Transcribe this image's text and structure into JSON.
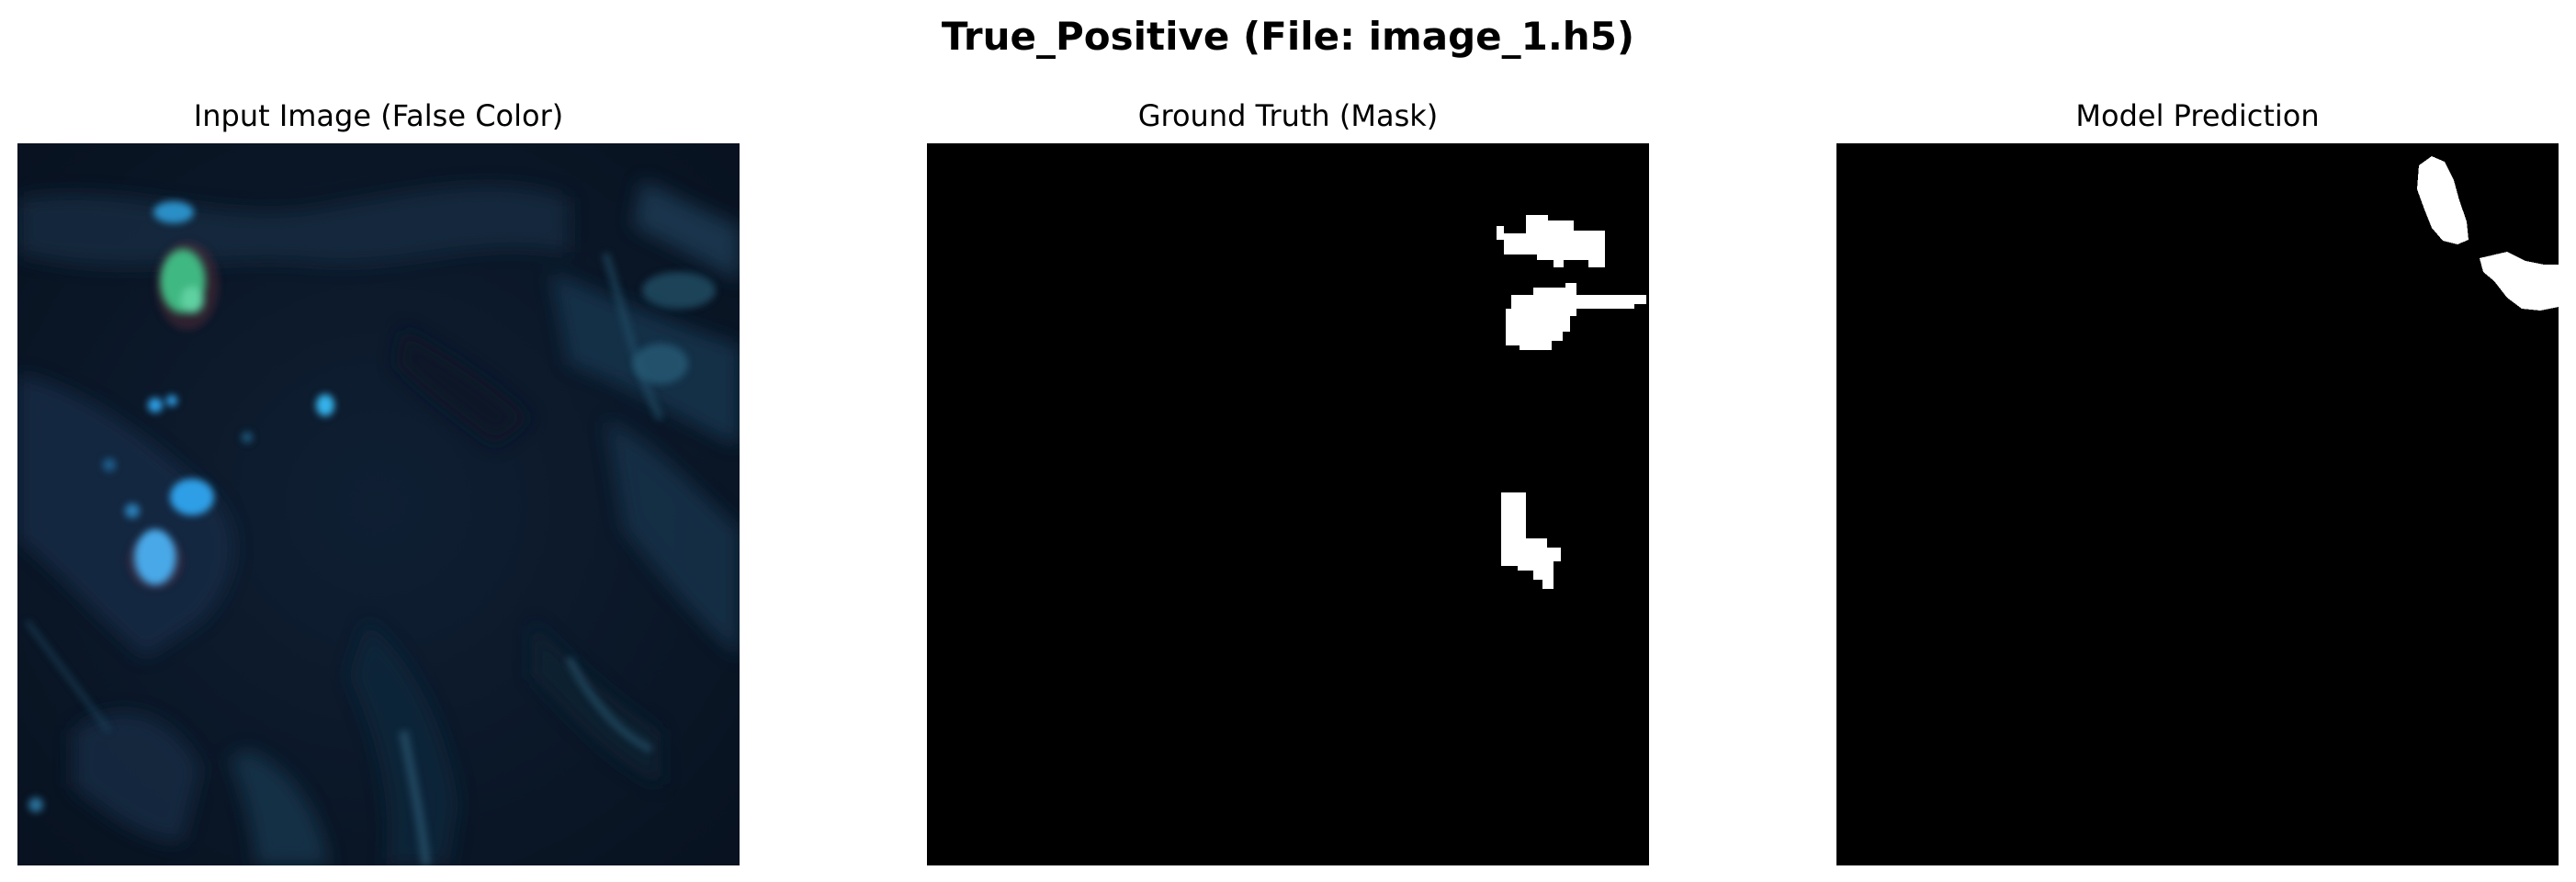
{
  "figure": {
    "title": "True_Positive (File: image_1.h5)"
  },
  "panels": [
    {
      "title": "Input Image (False Color)",
      "kind": "false-color-satellite-image"
    },
    {
      "title": "Ground Truth (Mask)",
      "kind": "binary-mask",
      "foreground": "#ffffff",
      "background": "#000000"
    },
    {
      "title": "Model Prediction",
      "kind": "binary-mask",
      "foreground": "#ffffff",
      "background": "#000000"
    }
  ],
  "colors": {
    "image_base": "#0b1726",
    "image_bright_blue": "#2f9fe6",
    "image_green": "#3fb882",
    "image_teal": "#1f4f66",
    "mask_background": "#000000",
    "mask_foreground": "#ffffff"
  }
}
